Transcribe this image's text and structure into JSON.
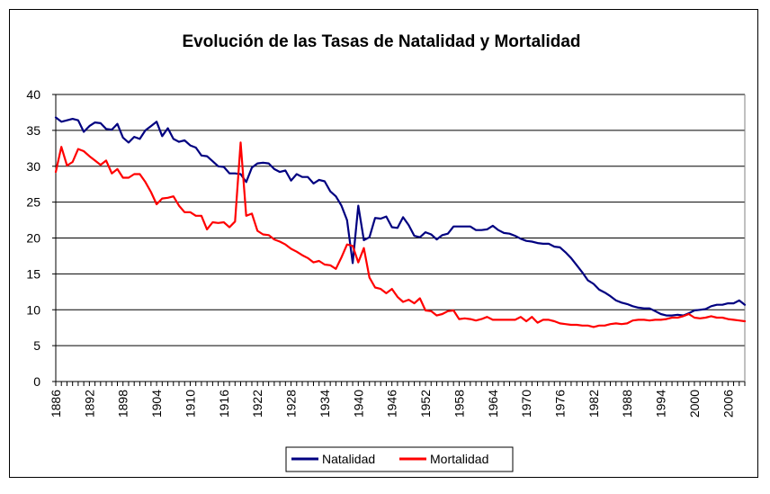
{
  "chart_data": {
    "type": "line",
    "title": "Evolución de las Tasas de Natalidad y Mortalidad",
    "xlabel": "",
    "ylabel": "",
    "ylim": [
      0,
      40
    ],
    "yticks": [
      "0",
      "5",
      "10",
      "15",
      "20",
      "25",
      "30",
      "35",
      "40"
    ],
    "xlim": [
      1886,
      2009
    ],
    "xticks": [
      "1886",
      "1892",
      "1898",
      "1904",
      "1910",
      "1916",
      "1922",
      "1928",
      "1934",
      "1940",
      "1946",
      "1952",
      "1958",
      "1964",
      "1970",
      "1976",
      "1982",
      "1988",
      "1994",
      "2000",
      "2006"
    ],
    "grid": "horizontal",
    "legend_position": "bottom",
    "series": [
      {
        "name": "Natalidad",
        "color": "#000080",
        "points": [
          [
            1886,
            36.8
          ],
          [
            1887,
            36.2
          ],
          [
            1888,
            36.4
          ],
          [
            1889,
            36.6
          ],
          [
            1890,
            36.4
          ],
          [
            1891,
            34.8
          ],
          [
            1892,
            35.6
          ],
          [
            1893,
            36.1
          ],
          [
            1894,
            36.0
          ],
          [
            1895,
            35.2
          ],
          [
            1896,
            35.1
          ],
          [
            1897,
            35.9
          ],
          [
            1898,
            34.0
          ],
          [
            1899,
            33.3
          ],
          [
            1900,
            34.1
          ],
          [
            1901,
            33.8
          ],
          [
            1902,
            35.0
          ],
          [
            1903,
            35.6
          ],
          [
            1904,
            36.2
          ],
          [
            1905,
            34.2
          ],
          [
            1906,
            35.3
          ],
          [
            1907,
            33.8
          ],
          [
            1908,
            33.4
          ],
          [
            1909,
            33.6
          ],
          [
            1910,
            32.9
          ],
          [
            1911,
            32.6
          ],
          [
            1912,
            31.5
          ],
          [
            1913,
            31.4
          ],
          [
            1914,
            30.7
          ],
          [
            1915,
            30.0
          ],
          [
            1916,
            29.9
          ],
          [
            1917,
            29.0
          ],
          [
            1918,
            29.0
          ],
          [
            1919,
            28.9
          ],
          [
            1920,
            27.8
          ],
          [
            1921,
            29.8
          ],
          [
            1922,
            30.4
          ],
          [
            1923,
            30.5
          ],
          [
            1924,
            30.4
          ],
          [
            1925,
            29.6
          ],
          [
            1926,
            29.2
          ],
          [
            1927,
            29.4
          ],
          [
            1928,
            28.0
          ],
          [
            1929,
            28.9
          ],
          [
            1930,
            28.5
          ],
          [
            1931,
            28.5
          ],
          [
            1932,
            27.6
          ],
          [
            1933,
            28.1
          ],
          [
            1934,
            27.9
          ],
          [
            1935,
            26.5
          ],
          [
            1936,
            25.8
          ],
          [
            1937,
            24.5
          ],
          [
            1938,
            22.5
          ],
          [
            1939,
            16.5
          ],
          [
            1940,
            24.5
          ],
          [
            1941,
            19.7
          ],
          [
            1942,
            20.1
          ],
          [
            1943,
            22.8
          ],
          [
            1944,
            22.7
          ],
          [
            1945,
            23.0
          ],
          [
            1946,
            21.5
          ],
          [
            1947,
            21.4
          ],
          [
            1948,
            22.9
          ],
          [
            1949,
            21.8
          ],
          [
            1950,
            20.3
          ],
          [
            1951,
            20.1
          ],
          [
            1952,
            20.8
          ],
          [
            1953,
            20.5
          ],
          [
            1954,
            19.8
          ],
          [
            1955,
            20.4
          ],
          [
            1956,
            20.6
          ],
          [
            1957,
            21.6
          ],
          [
            1958,
            21.6
          ],
          [
            1959,
            21.6
          ],
          [
            1960,
            21.6
          ],
          [
            1961,
            21.1
          ],
          [
            1962,
            21.1
          ],
          [
            1963,
            21.2
          ],
          [
            1964,
            21.7
          ],
          [
            1965,
            21.1
          ],
          [
            1966,
            20.7
          ],
          [
            1967,
            20.6
          ],
          [
            1968,
            20.3
          ],
          [
            1969,
            19.9
          ],
          [
            1970,
            19.6
          ],
          [
            1971,
            19.5
          ],
          [
            1972,
            19.3
          ],
          [
            1973,
            19.2
          ],
          [
            1974,
            19.2
          ],
          [
            1975,
            18.8
          ],
          [
            1976,
            18.7
          ],
          [
            1977,
            18.0
          ],
          [
            1978,
            17.2
          ],
          [
            1979,
            16.2
          ],
          [
            1980,
            15.2
          ],
          [
            1981,
            14.1
          ],
          [
            1982,
            13.6
          ],
          [
            1983,
            12.8
          ],
          [
            1984,
            12.4
          ],
          [
            1985,
            11.9
          ],
          [
            1986,
            11.3
          ],
          [
            1987,
            11.0
          ],
          [
            1988,
            10.8
          ],
          [
            1989,
            10.5
          ],
          [
            1990,
            10.3
          ],
          [
            1991,
            10.2
          ],
          [
            1992,
            10.2
          ],
          [
            1993,
            9.8
          ],
          [
            1994,
            9.4
          ],
          [
            1995,
            9.2
          ],
          [
            1996,
            9.2
          ],
          [
            1997,
            9.3
          ],
          [
            1998,
            9.2
          ],
          [
            1999,
            9.5
          ],
          [
            2000,
            9.9
          ],
          [
            2001,
            10.0
          ],
          [
            2002,
            10.1
          ],
          [
            2003,
            10.5
          ],
          [
            2004,
            10.7
          ],
          [
            2005,
            10.7
          ],
          [
            2006,
            10.9
          ],
          [
            2007,
            10.9
          ],
          [
            2008,
            11.3
          ],
          [
            2009,
            10.7
          ]
        ]
      },
      {
        "name": "Mortalidad",
        "color": "#ff0000",
        "points": [
          [
            1886,
            29.2
          ],
          [
            1887,
            32.7
          ],
          [
            1888,
            30.1
          ],
          [
            1889,
            30.6
          ],
          [
            1890,
            32.4
          ],
          [
            1891,
            32.1
          ],
          [
            1892,
            31.4
          ],
          [
            1893,
            30.8
          ],
          [
            1894,
            30.2
          ],
          [
            1895,
            30.8
          ],
          [
            1896,
            29.0
          ],
          [
            1897,
            29.6
          ],
          [
            1898,
            28.4
          ],
          [
            1899,
            28.4
          ],
          [
            1900,
            28.9
          ],
          [
            1901,
            28.9
          ],
          [
            1902,
            27.8
          ],
          [
            1903,
            26.4
          ],
          [
            1904,
            24.7
          ],
          [
            1905,
            25.5
          ],
          [
            1906,
            25.6
          ],
          [
            1907,
            25.8
          ],
          [
            1908,
            24.5
          ],
          [
            1909,
            23.6
          ],
          [
            1910,
            23.6
          ],
          [
            1911,
            23.1
          ],
          [
            1912,
            23.1
          ],
          [
            1913,
            21.2
          ],
          [
            1914,
            22.2
          ],
          [
            1915,
            22.1
          ],
          [
            1916,
            22.2
          ],
          [
            1917,
            21.5
          ],
          [
            1918,
            22.3
          ],
          [
            1919,
            33.3
          ],
          [
            1920,
            23.1
          ],
          [
            1921,
            23.4
          ],
          [
            1922,
            21.0
          ],
          [
            1923,
            20.5
          ],
          [
            1924,
            20.4
          ],
          [
            1925,
            19.8
          ],
          [
            1926,
            19.5
          ],
          [
            1927,
            19.1
          ],
          [
            1928,
            18.5
          ],
          [
            1929,
            18.1
          ],
          [
            1930,
            17.6
          ],
          [
            1931,
            17.2
          ],
          [
            1932,
            16.6
          ],
          [
            1933,
            16.8
          ],
          [
            1934,
            16.3
          ],
          [
            1935,
            16.2
          ],
          [
            1936,
            15.7
          ],
          [
            1937,
            17.3
          ],
          [
            1938,
            19.1
          ],
          [
            1939,
            18.9
          ],
          [
            1940,
            16.6
          ],
          [
            1941,
            18.6
          ],
          [
            1942,
            14.5
          ],
          [
            1943,
            13.1
          ],
          [
            1944,
            12.9
          ],
          [
            1945,
            12.3
          ],
          [
            1946,
            12.9
          ],
          [
            1947,
            11.8
          ],
          [
            1948,
            11.1
          ],
          [
            1949,
            11.4
          ],
          [
            1950,
            10.9
          ],
          [
            1951,
            11.6
          ],
          [
            1952,
            9.9
          ],
          [
            1953,
            9.8
          ],
          [
            1954,
            9.2
          ],
          [
            1955,
            9.4
          ],
          [
            1956,
            9.8
          ],
          [
            1957,
            9.9
          ],
          [
            1958,
            8.7
          ],
          [
            1959,
            8.8
          ],
          [
            1960,
            8.7
          ],
          [
            1961,
            8.5
          ],
          [
            1962,
            8.7
          ],
          [
            1963,
            9.0
          ],
          [
            1964,
            8.6
          ],
          [
            1965,
            8.6
          ],
          [
            1966,
            8.6
          ],
          [
            1967,
            8.6
          ],
          [
            1968,
            8.6
          ],
          [
            1969,
            9.0
          ],
          [
            1970,
            8.4
          ],
          [
            1971,
            9.0
          ],
          [
            1972,
            8.2
          ],
          [
            1973,
            8.6
          ],
          [
            1974,
            8.6
          ],
          [
            1975,
            8.4
          ],
          [
            1976,
            8.1
          ],
          [
            1977,
            8.0
          ],
          [
            1978,
            7.9
          ],
          [
            1979,
            7.9
          ],
          [
            1980,
            7.8
          ],
          [
            1981,
            7.8
          ],
          [
            1982,
            7.6
          ],
          [
            1983,
            7.8
          ],
          [
            1984,
            7.8
          ],
          [
            1985,
            8.0
          ],
          [
            1986,
            8.1
          ],
          [
            1987,
            8.0
          ],
          [
            1988,
            8.1
          ],
          [
            1989,
            8.5
          ],
          [
            1990,
            8.6
          ],
          [
            1991,
            8.6
          ],
          [
            1992,
            8.5
          ],
          [
            1993,
            8.6
          ],
          [
            1994,
            8.6
          ],
          [
            1995,
            8.7
          ],
          [
            1996,
            8.9
          ],
          [
            1997,
            8.9
          ],
          [
            1998,
            9.1
          ],
          [
            1999,
            9.4
          ],
          [
            2000,
            8.9
          ],
          [
            2001,
            8.8
          ],
          [
            2002,
            8.9
          ],
          [
            2003,
            9.1
          ],
          [
            2004,
            8.9
          ],
          [
            2005,
            8.9
          ],
          [
            2006,
            8.7
          ],
          [
            2007,
            8.6
          ],
          [
            2008,
            8.5
          ],
          [
            2009,
            8.4
          ]
        ]
      }
    ]
  }
}
